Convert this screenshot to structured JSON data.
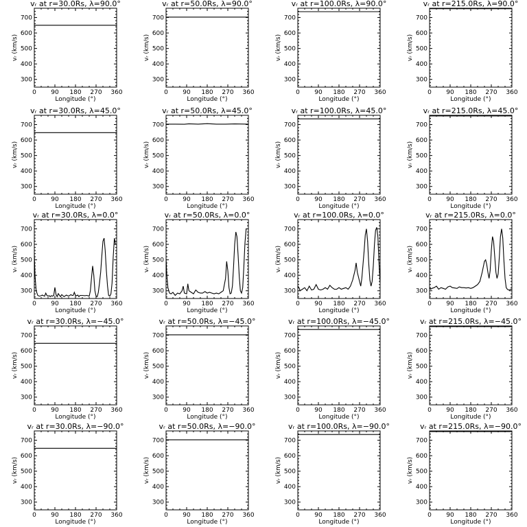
{
  "figure": {
    "background": "#ffffff",
    "line_color": "#000000"
  },
  "chart_data": [
    {
      "type": "line",
      "title": "vᵣ at r=30.0Rs, λ=90.0°",
      "xlabel": "Longitude (°)",
      "ylabel": "vᵣ (km/s)",
      "xlim": [
        0,
        360
      ],
      "ylim": [
        250,
        760
      ],
      "xticks": [
        0,
        90,
        180,
        270,
        360
      ],
      "yticks": [
        300,
        400,
        500,
        600,
        700
      ],
      "x": [
        0,
        360
      ],
      "y": [
        650,
        650
      ]
    },
    {
      "type": "line",
      "title": "vᵣ at r=50.0Rs, λ=90.0°",
      "xlabel": "Longitude (°)",
      "ylabel": "vᵣ (km/s)",
      "xlim": [
        0,
        360
      ],
      "ylim": [
        250,
        760
      ],
      "xticks": [
        0,
        90,
        180,
        270,
        360
      ],
      "yticks": [
        300,
        400,
        500,
        600,
        700
      ],
      "x": [
        0,
        360
      ],
      "y": [
        703,
        703
      ]
    },
    {
      "type": "line",
      "title": "vᵣ at r=100.0Rs, λ=90.0°",
      "xlabel": "Longitude (°)",
      "ylabel": "vᵣ (km/s)",
      "xlim": [
        0,
        360
      ],
      "ylim": [
        250,
        760
      ],
      "xticks": [
        0,
        90,
        180,
        270,
        360
      ],
      "yticks": [
        300,
        400,
        500,
        600,
        700
      ],
      "x": [
        0,
        360
      ],
      "y": [
        738,
        738
      ]
    },
    {
      "type": "line",
      "title": "vᵣ at r=215.0Rs, λ=90.0°",
      "xlabel": "Longitude (°)",
      "ylabel": "vᵣ (km/s)",
      "xlim": [
        0,
        360
      ],
      "ylim": [
        250,
        760
      ],
      "xticks": [
        0,
        90,
        180,
        270,
        360
      ],
      "yticks": [
        300,
        400,
        500,
        600,
        700
      ],
      "x": [
        0,
        360
      ],
      "y": [
        757,
        757
      ]
    },
    {
      "type": "line",
      "title": "vᵣ at r=30.0Rs, λ=45.0°",
      "xlabel": "Longitude (°)",
      "ylabel": "vᵣ (km/s)",
      "xlim": [
        0,
        360
      ],
      "ylim": [
        250,
        760
      ],
      "xticks": [
        0,
        90,
        180,
        270,
        360
      ],
      "yticks": [
        300,
        400,
        500,
        600,
        700
      ],
      "x": [
        0,
        360
      ],
      "y": [
        648,
        648
      ]
    },
    {
      "type": "line",
      "title": "vᵣ at r=50.0Rs, λ=45.0°",
      "xlabel": "Longitude (°)",
      "ylabel": "vᵣ (km/s)",
      "xlim": [
        0,
        360
      ],
      "ylim": [
        250,
        760
      ],
      "xticks": [
        0,
        90,
        180,
        270,
        360
      ],
      "yticks": [
        300,
        400,
        500,
        600,
        700
      ],
      "x": [
        0,
        40,
        80,
        100,
        140,
        180,
        220,
        260,
        300,
        360
      ],
      "y": [
        703,
        703,
        702,
        705,
        703,
        706,
        703,
        703,
        704,
        703
      ]
    },
    {
      "type": "line",
      "title": "vᵣ at r=100.0Rs, λ=45.0°",
      "xlabel": "Longitude (°)",
      "ylabel": "vᵣ (km/s)",
      "xlim": [
        0,
        360
      ],
      "ylim": [
        250,
        760
      ],
      "xticks": [
        0,
        90,
        180,
        270,
        360
      ],
      "yticks": [
        300,
        400,
        500,
        600,
        700
      ],
      "x": [
        0,
        360
      ],
      "y": [
        737,
        737
      ]
    },
    {
      "type": "line",
      "title": "vᵣ at r=215.0Rs, λ=45.0°",
      "xlabel": "Longitude (°)",
      "ylabel": "vᵣ (km/s)",
      "xlim": [
        0,
        360
      ],
      "ylim": [
        250,
        760
      ],
      "xticks": [
        0,
        90,
        180,
        270,
        360
      ],
      "yticks": [
        300,
        400,
        500,
        600,
        700
      ],
      "x": [
        0,
        360
      ],
      "y": [
        756,
        756
      ]
    },
    {
      "type": "line",
      "title": "vᵣ at r=30.0Rs, λ=0.0°",
      "xlabel": "Longitude (°)",
      "ylabel": "vᵣ (km/s)",
      "xlim": [
        0,
        360
      ],
      "ylim": [
        250,
        760
      ],
      "xticks": [
        0,
        90,
        180,
        270,
        360
      ],
      "yticks": [
        300,
        400,
        500,
        600,
        700
      ],
      "x": [
        0,
        3,
        8,
        15,
        22,
        30,
        35,
        40,
        45,
        50,
        55,
        60,
        65,
        70,
        75,
        80,
        85,
        90,
        95,
        100,
        105,
        110,
        115,
        120,
        125,
        130,
        140,
        150,
        160,
        165,
        170,
        175,
        180,
        185,
        190,
        195,
        200,
        210,
        220,
        230,
        240,
        245,
        250,
        255,
        260,
        265,
        270,
        275,
        280,
        285,
        290,
        295,
        300,
        305,
        310,
        315,
        320,
        325,
        330,
        335,
        340,
        345,
        350,
        355,
        360
      ],
      "y": [
        540,
        400,
        300,
        270,
        265,
        268,
        272,
        268,
        265,
        285,
        270,
        265,
        268,
        262,
        268,
        265,
        270,
        322,
        275,
        262,
        282,
        270,
        262,
        275,
        268,
        262,
        272,
        265,
        275,
        270,
        270,
        290,
        270,
        268,
        272,
        262,
        270,
        270,
        268,
        270,
        265,
        300,
        380,
        460,
        400,
        300,
        265,
        262,
        290,
        350,
        420,
        520,
        620,
        640,
        560,
        430,
        330,
        270,
        265,
        280,
        350,
        520,
        640,
        600,
        600
      ]
    },
    {
      "type": "line",
      "title": "vᵣ at r=50.0Rs, λ=0.0°",
      "xlabel": "Longitude (°)",
      "ylabel": "vᵣ (km/s)",
      "xlim": [
        0,
        360
      ],
      "ylim": [
        250,
        760
      ],
      "xticks": [
        0,
        90,
        180,
        270,
        360
      ],
      "yticks": [
        300,
        400,
        500,
        600,
        700
      ],
      "x": [
        0,
        3,
        8,
        15,
        22,
        30,
        40,
        50,
        60,
        70,
        75,
        80,
        90,
        95,
        100,
        110,
        120,
        130,
        140,
        150,
        160,
        170,
        180,
        190,
        200,
        210,
        220,
        230,
        240,
        250,
        260,
        265,
        270,
        275,
        280,
        285,
        290,
        295,
        300,
        305,
        310,
        315,
        320,
        325,
        330,
        335,
        340,
        345,
        350,
        355,
        360
      ],
      "y": [
        510,
        410,
        320,
        285,
        280,
        290,
        270,
        285,
        280,
        300,
        330,
        285,
        280,
        345,
        300,
        290,
        280,
        305,
        290,
        285,
        285,
        295,
        285,
        290,
        285,
        280,
        285,
        280,
        290,
        300,
        380,
        490,
        430,
        320,
        280,
        285,
        330,
        450,
        600,
        680,
        650,
        530,
        390,
        300,
        285,
        320,
        450,
        610,
        700,
        700,
        700
      ]
    },
    {
      "type": "line",
      "title": "vᵣ at r=100.0Rs, λ=0.0°",
      "xlabel": "Longitude (°)",
      "ylabel": "vᵣ (km/s)",
      "xlim": [
        0,
        360
      ],
      "ylim": [
        250,
        760
      ],
      "xticks": [
        0,
        90,
        180,
        270,
        360
      ],
      "yticks": [
        300,
        400,
        500,
        600,
        700
      ],
      "x": [
        0,
        5,
        10,
        20,
        30,
        40,
        50,
        60,
        70,
        80,
        90,
        100,
        110,
        120,
        130,
        140,
        150,
        160,
        170,
        180,
        190,
        200,
        210,
        220,
        230,
        240,
        250,
        255,
        260,
        270,
        275,
        280,
        290,
        295,
        300,
        305,
        310,
        315,
        320,
        325,
        330,
        335,
        340,
        345,
        350,
        355,
        360
      ],
      "y": [
        330,
        320,
        300,
        310,
        320,
        300,
        330,
        305,
        310,
        340,
        310,
        305,
        310,
        320,
        310,
        335,
        320,
        310,
        310,
        320,
        310,
        315,
        320,
        310,
        330,
        370,
        430,
        480,
        420,
        360,
        330,
        380,
        560,
        660,
        700,
        620,
        480,
        370,
        330,
        360,
        460,
        600,
        690,
        710,
        650,
        480,
        350
      ]
    },
    {
      "type": "line",
      "title": "vᵣ at r=215.0Rs, λ=0.0°",
      "xlabel": "Longitude (°)",
      "ylabel": "vᵣ (km/s)",
      "xlim": [
        0,
        360
      ],
      "ylim": [
        250,
        760
      ],
      "xticks": [
        0,
        90,
        180,
        270,
        360
      ],
      "yticks": [
        300,
        400,
        500,
        600,
        700
      ],
      "x": [
        0,
        5,
        10,
        20,
        30,
        40,
        50,
        60,
        70,
        80,
        90,
        100,
        110,
        120,
        130,
        140,
        150,
        160,
        170,
        180,
        190,
        200,
        210,
        220,
        230,
        240,
        245,
        250,
        255,
        260,
        265,
        270,
        275,
        280,
        285,
        290,
        295,
        300,
        305,
        310,
        315,
        320,
        325,
        330,
        335,
        340,
        345,
        350,
        355,
        360
      ],
      "y": [
        320,
        310,
        315,
        320,
        330,
        310,
        320,
        315,
        310,
        325,
        330,
        320,
        318,
        315,
        325,
        320,
        320,
        318,
        320,
        315,
        320,
        330,
        340,
        360,
        420,
        490,
        500,
        470,
        420,
        380,
        430,
        560,
        650,
        620,
        520,
        420,
        380,
        410,
        520,
        650,
        700,
        640,
        500,
        380,
        320,
        310,
        305,
        305,
        310,
        310
      ]
    },
    {
      "type": "line",
      "title": "vᵣ at r=30.0Rs, λ=−45.0°",
      "xlabel": "Longitude (°)",
      "ylabel": "vᵣ (km/s)",
      "xlim": [
        0,
        360
      ],
      "ylim": [
        250,
        760
      ],
      "xticks": [
        0,
        90,
        180,
        270,
        360
      ],
      "yticks": [
        300,
        400,
        500,
        600,
        700
      ],
      "x": [
        0,
        360
      ],
      "y": [
        648,
        648
      ]
    },
    {
      "type": "line",
      "title": "vᵣ at r=50.0Rs, λ=−45.0°",
      "xlabel": "Longitude (°)",
      "ylabel": "vᵣ (km/s)",
      "xlim": [
        0,
        360
      ],
      "ylim": [
        250,
        760
      ],
      "xticks": [
        0,
        90,
        180,
        270,
        360
      ],
      "yticks": [
        300,
        400,
        500,
        600,
        700
      ],
      "x": [
        0,
        360
      ],
      "y": [
        703,
        703
      ]
    },
    {
      "type": "line",
      "title": "vᵣ at r=100.0Rs, λ=−45.0°",
      "xlabel": "Longitude (°)",
      "ylabel": "vᵣ (km/s)",
      "xlim": [
        0,
        360
      ],
      "ylim": [
        250,
        760
      ],
      "xticks": [
        0,
        90,
        180,
        270,
        360
      ],
      "yticks": [
        300,
        400,
        500,
        600,
        700
      ],
      "x": [
        0,
        360
      ],
      "y": [
        737,
        737
      ]
    },
    {
      "type": "line",
      "title": "vᵣ at r=215.0Rs, λ=−45.0°",
      "xlabel": "Longitude (°)",
      "ylabel": "vᵣ (km/s)",
      "xlim": [
        0,
        360
      ],
      "ylim": [
        250,
        760
      ],
      "xticks": [
        0,
        90,
        180,
        270,
        360
      ],
      "yticks": [
        300,
        400,
        500,
        600,
        700
      ],
      "x": [
        0,
        360
      ],
      "y": [
        756,
        756
      ]
    },
    {
      "type": "line",
      "title": "vᵣ at r=30.0Rs, λ=−90.0°",
      "xlabel": "Longitude (°)",
      "ylabel": "vᵣ (km/s)",
      "xlim": [
        0,
        360
      ],
      "ylim": [
        250,
        760
      ],
      "xticks": [
        0,
        90,
        180,
        270,
        360
      ],
      "yticks": [
        300,
        400,
        500,
        600,
        700
      ],
      "x": [
        0,
        360
      ],
      "y": [
        648,
        648
      ]
    },
    {
      "type": "line",
      "title": "vᵣ at r=50.0Rs, λ=−90.0°",
      "xlabel": "Longitude (°)",
      "ylabel": "vᵣ (km/s)",
      "xlim": [
        0,
        360
      ],
      "ylim": [
        250,
        760
      ],
      "xticks": [
        0,
        90,
        180,
        270,
        360
      ],
      "yticks": [
        300,
        400,
        500,
        600,
        700
      ],
      "x": [
        0,
        360
      ],
      "y": [
        703,
        703
      ]
    },
    {
      "type": "line",
      "title": "vᵣ at r=100.0Rs, λ=−90.0°",
      "xlabel": "Longitude (°)",
      "ylabel": "vᵣ (km/s)",
      "xlim": [
        0,
        360
      ],
      "ylim": [
        250,
        760
      ],
      "xticks": [
        0,
        90,
        180,
        270,
        360
      ],
      "yticks": [
        300,
        400,
        500,
        600,
        700
      ],
      "x": [
        0,
        360
      ],
      "y": [
        737,
        737
      ]
    },
    {
      "type": "line",
      "title": "vᵣ at r=215.0Rs, λ=−90.0°",
      "xlabel": "Longitude (°)",
      "ylabel": "vᵣ (km/s)",
      "xlim": [
        0,
        360
      ],
      "ylim": [
        250,
        760
      ],
      "xticks": [
        0,
        90,
        180,
        270,
        360
      ],
      "yticks": [
        300,
        400,
        500,
        600,
        700
      ],
      "x": [
        0,
        360
      ],
      "y": [
        756,
        756
      ]
    }
  ]
}
